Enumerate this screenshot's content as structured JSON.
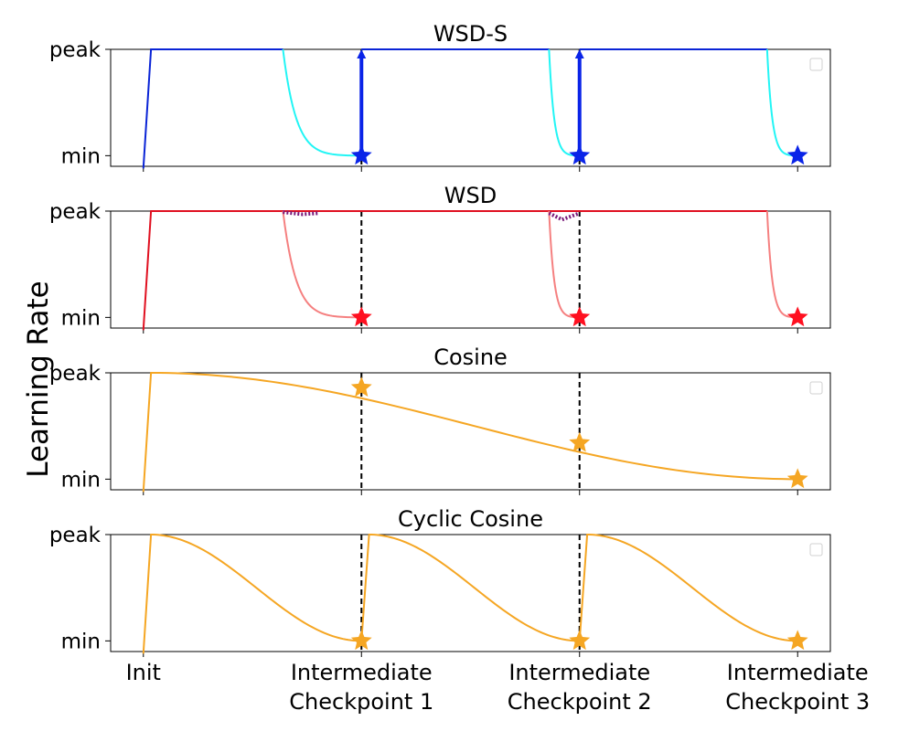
{
  "figure": {
    "ylabel": "Learning Rate",
    "xtick_labels": [
      [
        "Init"
      ],
      [
        "Intermediate",
        "Checkpoint 1"
      ],
      [
        "Intermediate",
        "Checkpoint 2"
      ],
      [
        "Intermediate",
        "Checkpoint 3"
      ]
    ]
  },
  "chart_data": [
    {
      "type": "line",
      "title": "WSD-S",
      "yticks": [
        "peak",
        "min"
      ],
      "ylim": [
        -0.1,
        1.0
      ],
      "xlim": [
        -0.15,
        3.15
      ],
      "checkpoints_x": [
        1,
        2
      ],
      "legend": "empty box, top-right",
      "colors": {
        "stable": "#0a24d6",
        "decay": "#22f5f5",
        "arrow": "#0a24e8",
        "star": "#0a24e8"
      },
      "series": [
        {
          "role": "stable",
          "x": [
            0.0,
            0.035,
            0.64
          ],
          "y": [
            -0.12,
            1.0,
            1.0
          ]
        },
        {
          "role": "decay",
          "x_start": 0.64,
          "x_end": 1.0,
          "from": 1.0,
          "to": 0.0
        },
        {
          "role": "stable",
          "x": [
            1.0,
            1.86
          ],
          "y": [
            1.0,
            1.0
          ]
        },
        {
          "role": "decay",
          "x_start": 1.86,
          "x_end": 2.0,
          "from": 1.0,
          "to": 0.0
        },
        {
          "role": "stable",
          "x": [
            2.0,
            2.86
          ],
          "y": [
            1.0,
            1.0
          ]
        },
        {
          "role": "decay",
          "x_start": 2.86,
          "x_end": 3.0,
          "from": 1.0,
          "to": 0.0
        }
      ],
      "arrows": [
        {
          "x": 1.0,
          "from": 0.0,
          "to": 1.0
        },
        {
          "x": 2.0,
          "from": 0.0,
          "to": 1.0
        }
      ],
      "stars": [
        {
          "x": 1.0,
          "y": 0.0
        },
        {
          "x": 2.0,
          "y": 0.0
        },
        {
          "x": 3.0,
          "y": 0.0
        }
      ]
    },
    {
      "type": "line",
      "title": "WSD",
      "yticks": [
        "peak",
        "min"
      ],
      "ylim": [
        -0.1,
        1.0
      ],
      "xlim": [
        -0.15,
        3.15
      ],
      "checkpoints_x": [
        1,
        2
      ],
      "colors": {
        "stable": "#e01020",
        "decay": "#f58080",
        "dotted": "#7a1a7a",
        "star": "#ff1020"
      },
      "series": [
        {
          "role": "stable",
          "x": [
            0.0,
            0.035,
            2.86
          ],
          "y": [
            -0.12,
            1.0,
            1.0
          ]
        },
        {
          "role": "decay",
          "x_start": 0.64,
          "x_end": 1.0,
          "from": 1.0,
          "to": 0.0
        },
        {
          "role": "decay",
          "x_start": 1.86,
          "x_end": 2.0,
          "from": 1.0,
          "to": 0.0
        },
        {
          "role": "decay",
          "x_start": 2.86,
          "x_end": 3.0,
          "from": 1.0,
          "to": 0.0
        },
        {
          "role": "dotted",
          "x": [
            0.64,
            0.73,
            0.8
          ],
          "y": [
            0.99,
            0.97,
            0.98
          ]
        },
        {
          "role": "dotted",
          "x": [
            1.86,
            1.92,
            2.0
          ],
          "y": [
            0.98,
            0.92,
            0.98
          ]
        }
      ],
      "stars": [
        {
          "x": 1.0,
          "y": 0.0
        },
        {
          "x": 2.0,
          "y": 0.0
        },
        {
          "x": 3.0,
          "y": 0.0
        }
      ]
    },
    {
      "type": "line",
      "title": "Cosine",
      "yticks": [
        "peak",
        "min"
      ],
      "ylim": [
        -0.1,
        1.0
      ],
      "xlim": [
        -0.15,
        3.15
      ],
      "checkpoints_x": [
        1,
        2
      ],
      "legend": "empty box, top-right",
      "colors": {
        "line": "#f5a623",
        "star": "#f5a623"
      },
      "series": [
        {
          "role": "cosine",
          "warmup": {
            "x": [
              0.0,
              0.035
            ],
            "y": [
              -0.12,
              1.0
            ]
          },
          "x_start": 0.035,
          "x_end": 3.0,
          "from": 1.0,
          "to": 0.0
        }
      ],
      "stars": [
        {
          "x": 1.0,
          "y": 0.86
        },
        {
          "x": 2.0,
          "y": 0.34
        },
        {
          "x": 3.0,
          "y": 0.0
        }
      ]
    },
    {
      "type": "line",
      "title": "Cyclic Cosine",
      "yticks": [
        "peak",
        "min"
      ],
      "ylim": [
        -0.1,
        1.0
      ],
      "xlim": [
        -0.15,
        3.15
      ],
      "checkpoints_x": [
        1,
        2
      ],
      "legend": "empty box, top-right",
      "colors": {
        "line": "#f5a623",
        "star": "#f5a623"
      },
      "series": [
        {
          "role": "cosine",
          "warmup": {
            "x": [
              0.0,
              0.035
            ],
            "y": [
              -0.12,
              1.0
            ]
          },
          "x_start": 0.035,
          "x_end": 1.0,
          "from": 1.0,
          "to": 0.0
        },
        {
          "role": "cosine",
          "warmup": {
            "x": [
              1.0,
              1.035
            ],
            "y": [
              0.0,
              1.0
            ]
          },
          "x_start": 1.035,
          "x_end": 2.0,
          "from": 1.0,
          "to": 0.0
        },
        {
          "role": "cosine",
          "warmup": {
            "x": [
              2.0,
              2.035
            ],
            "y": [
              0.0,
              1.0
            ]
          },
          "x_start": 2.035,
          "x_end": 3.0,
          "from": 1.0,
          "to": 0.0
        }
      ],
      "stars": [
        {
          "x": 1.0,
          "y": 0.0
        },
        {
          "x": 2.0,
          "y": 0.0
        },
        {
          "x": 3.0,
          "y": 0.0
        }
      ]
    }
  ]
}
